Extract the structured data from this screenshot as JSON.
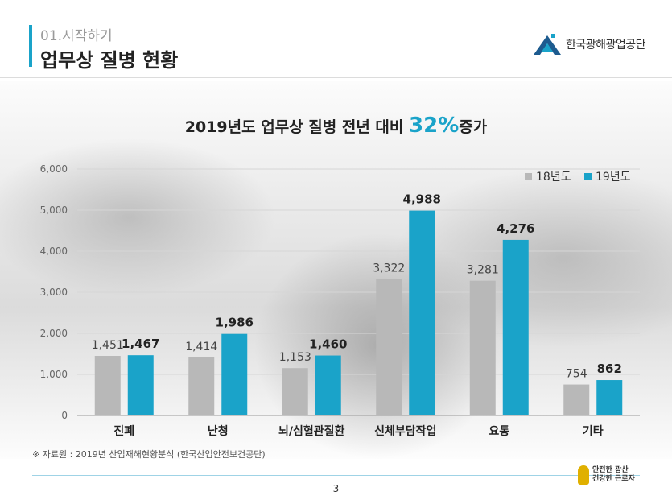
{
  "header": {
    "subtitle": "01.시작하기",
    "title": "업무상 질병 현황",
    "logo_text": "한국광해광업공단"
  },
  "chart_heading": {
    "prefix": "2019년도 업무상 질병 전년 대비 ",
    "highlight": "32%",
    "suffix": "증가"
  },
  "chart_data": {
    "type": "bar",
    "categories": [
      "진폐",
      "난청",
      "뇌/심혈관질환",
      "신체부담작업",
      "요통",
      "기타"
    ],
    "series": [
      {
        "name": "18년도",
        "values": [
          1451,
          1414,
          1153,
          3322,
          3281,
          754
        ],
        "labels": [
          "1,451",
          "1,414",
          "1,153",
          "3,322",
          "3,281",
          "754"
        ],
        "color": "#b8b8b8"
      },
      {
        "name": "19년도",
        "values": [
          1467,
          1986,
          1460,
          4988,
          4276,
          862
        ],
        "labels": [
          "1,467",
          "1,986",
          "1,460",
          "4,988",
          "4,276",
          "862"
        ],
        "color": "#1aa3c9"
      }
    ],
    "ylim": [
      0,
      6000
    ],
    "yticks": [
      0,
      1000,
      2000,
      3000,
      4000,
      5000,
      6000
    ],
    "ytick_labels": [
      "0",
      "1,000",
      "2,000",
      "3,000",
      "4,000",
      "5,000",
      "6,000"
    ],
    "grid": true,
    "legend": "top-right"
  },
  "footer": {
    "source": "※ 자료원 : 2019년 산업재해현황분석 (한국산업안전보건공단)",
    "page": "3",
    "slogan_line1": "안전한 광산",
    "slogan_line2": "건강한 근로자"
  },
  "colors": {
    "accent": "#1aa3c9",
    "series_2018": "#b8b8b8",
    "series_2019": "#1aa3c9"
  }
}
